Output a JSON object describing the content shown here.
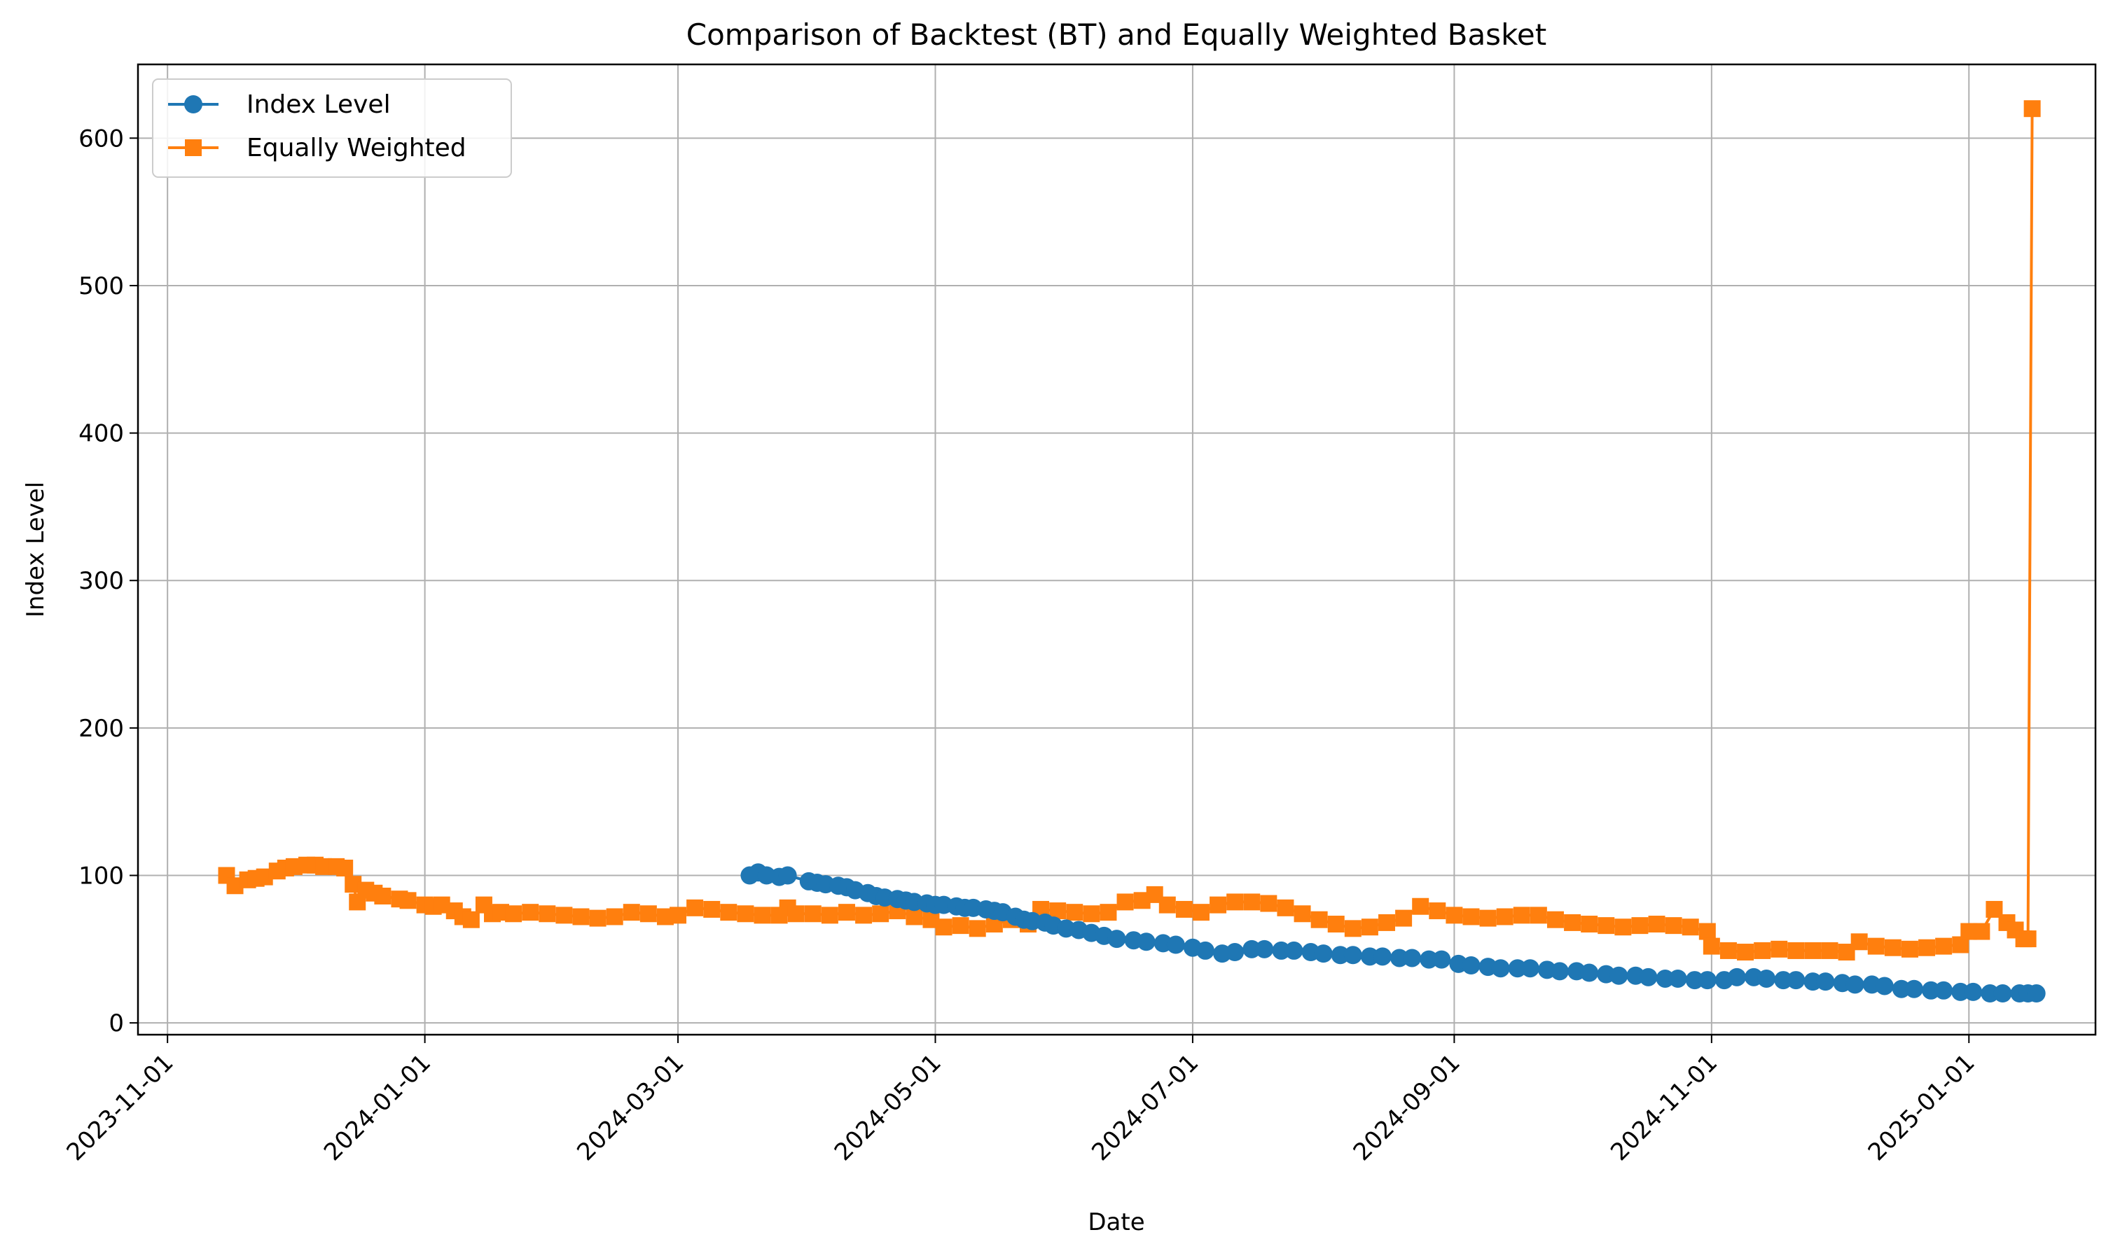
{
  "chart_data": {
    "type": "line",
    "title": "Comparison of Backtest (BT) and Equally Weighted Basket",
    "xlabel": "Date",
    "ylabel": "Index Level",
    "xlim": [
      "2023-10-25",
      "2025-01-31"
    ],
    "ylim": [
      -8,
      650
    ],
    "x_ticks": [
      "2023-11-01",
      "2024-01-01",
      "2024-03-01",
      "2024-05-01",
      "2024-07-01",
      "2024-09-01",
      "2024-11-01",
      "2025-01-01"
    ],
    "y_ticks": [
      0,
      100,
      200,
      300,
      400,
      500,
      600
    ],
    "grid": true,
    "legend": "top-left",
    "series": [
      {
        "name": "Index Level",
        "color": "#1f77b4",
        "marker": "circle",
        "points": [
          [
            "2024-03-18",
            100
          ],
          [
            "2024-03-20",
            102
          ],
          [
            "2024-03-22",
            100
          ],
          [
            "2024-03-25",
            99
          ],
          [
            "2024-03-27",
            100
          ],
          [
            "2024-04-01",
            96
          ],
          [
            "2024-04-03",
            95
          ],
          [
            "2024-04-05",
            94
          ],
          [
            "2024-04-08",
            93
          ],
          [
            "2024-04-10",
            92
          ],
          [
            "2024-04-12",
            90
          ],
          [
            "2024-04-15",
            88
          ],
          [
            "2024-04-17",
            86
          ],
          [
            "2024-04-19",
            85
          ],
          [
            "2024-04-22",
            84
          ],
          [
            "2024-04-24",
            83
          ],
          [
            "2024-04-26",
            82
          ],
          [
            "2024-04-29",
            81
          ],
          [
            "2024-05-01",
            80
          ],
          [
            "2024-05-03",
            80
          ],
          [
            "2024-05-06",
            79
          ],
          [
            "2024-05-08",
            78
          ],
          [
            "2024-05-10",
            78
          ],
          [
            "2024-05-13",
            77
          ],
          [
            "2024-05-15",
            76
          ],
          [
            "2024-05-17",
            75
          ],
          [
            "2024-05-20",
            72
          ],
          [
            "2024-05-22",
            70
          ],
          [
            "2024-05-24",
            69
          ],
          [
            "2024-05-27",
            68
          ],
          [
            "2024-05-29",
            66
          ],
          [
            "2024-06-01",
            64
          ],
          [
            "2024-06-04",
            63
          ],
          [
            "2024-06-07",
            61
          ],
          [
            "2024-06-10",
            59
          ],
          [
            "2024-06-13",
            57
          ],
          [
            "2024-06-17",
            56
          ],
          [
            "2024-06-20",
            55
          ],
          [
            "2024-06-24",
            54
          ],
          [
            "2024-06-27",
            53
          ],
          [
            "2024-07-01",
            51
          ],
          [
            "2024-07-04",
            49
          ],
          [
            "2024-07-08",
            47
          ],
          [
            "2024-07-11",
            48
          ],
          [
            "2024-07-15",
            50
          ],
          [
            "2024-07-18",
            50
          ],
          [
            "2024-07-22",
            49
          ],
          [
            "2024-07-25",
            49
          ],
          [
            "2024-07-29",
            48
          ],
          [
            "2024-08-01",
            47
          ],
          [
            "2024-08-05",
            46
          ],
          [
            "2024-08-08",
            46
          ],
          [
            "2024-08-12",
            45
          ],
          [
            "2024-08-15",
            45
          ],
          [
            "2024-08-19",
            44
          ],
          [
            "2024-08-22",
            44
          ],
          [
            "2024-08-26",
            43
          ],
          [
            "2024-08-29",
            43
          ],
          [
            "2024-09-02",
            40
          ],
          [
            "2024-09-05",
            39
          ],
          [
            "2024-09-09",
            38
          ],
          [
            "2024-09-12",
            37
          ],
          [
            "2024-09-16",
            37
          ],
          [
            "2024-09-19",
            37
          ],
          [
            "2024-09-23",
            36
          ],
          [
            "2024-09-26",
            35
          ],
          [
            "2024-09-30",
            35
          ],
          [
            "2024-10-03",
            34
          ],
          [
            "2024-10-07",
            33
          ],
          [
            "2024-10-10",
            32
          ],
          [
            "2024-10-14",
            32
          ],
          [
            "2024-10-17",
            31
          ],
          [
            "2024-10-21",
            30
          ],
          [
            "2024-10-24",
            30
          ],
          [
            "2024-10-28",
            29
          ],
          [
            "2024-10-31",
            29
          ],
          [
            "2024-11-04",
            29
          ],
          [
            "2024-11-07",
            31
          ],
          [
            "2024-11-11",
            31
          ],
          [
            "2024-11-14",
            30
          ],
          [
            "2024-11-18",
            29
          ],
          [
            "2024-11-21",
            29
          ],
          [
            "2024-11-25",
            28
          ],
          [
            "2024-11-28",
            28
          ],
          [
            "2024-12-02",
            27
          ],
          [
            "2024-12-05",
            26
          ],
          [
            "2024-12-09",
            26
          ],
          [
            "2024-12-12",
            25
          ],
          [
            "2024-12-16",
            23
          ],
          [
            "2024-12-19",
            23
          ],
          [
            "2024-12-23",
            22
          ],
          [
            "2024-12-26",
            22
          ],
          [
            "2024-12-30",
            21
          ],
          [
            "2025-01-02",
            21
          ],
          [
            "2025-01-06",
            20
          ],
          [
            "2025-01-09",
            20
          ],
          [
            "2025-01-13",
            20
          ],
          [
            "2025-01-15",
            20
          ],
          [
            "2025-01-17",
            20
          ]
        ]
      },
      {
        "name": "Equally Weighted",
        "color": "#ff7f0e",
        "marker": "square",
        "points": [
          [
            "2023-11-15",
            100
          ],
          [
            "2023-11-17",
            93
          ],
          [
            "2023-11-20",
            97
          ],
          [
            "2023-11-22",
            98
          ],
          [
            "2023-11-24",
            99
          ],
          [
            "2023-11-27",
            103
          ],
          [
            "2023-11-29",
            105
          ],
          [
            "2023-12-01",
            106
          ],
          [
            "2023-12-04",
            107
          ],
          [
            "2023-12-06",
            107
          ],
          [
            "2023-12-08",
            106
          ],
          [
            "2023-12-11",
            106
          ],
          [
            "2023-12-13",
            105
          ],
          [
            "2023-12-15",
            94
          ],
          [
            "2023-12-16",
            82
          ],
          [
            "2023-12-18",
            90
          ],
          [
            "2023-12-20",
            88
          ],
          [
            "2023-12-22",
            86
          ],
          [
            "2023-12-26",
            84
          ],
          [
            "2023-12-28",
            83
          ],
          [
            "2024-01-01",
            80
          ],
          [
            "2024-01-03",
            79
          ],
          [
            "2024-01-05",
            80
          ],
          [
            "2024-01-08",
            76
          ],
          [
            "2024-01-10",
            72
          ],
          [
            "2024-01-12",
            70
          ],
          [
            "2024-01-15",
            80
          ],
          [
            "2024-01-17",
            74
          ],
          [
            "2024-01-19",
            75
          ],
          [
            "2024-01-22",
            74
          ],
          [
            "2024-01-26",
            75
          ],
          [
            "2024-01-30",
            74
          ],
          [
            "2024-02-03",
            73
          ],
          [
            "2024-02-07",
            72
          ],
          [
            "2024-02-11",
            71
          ],
          [
            "2024-02-15",
            72
          ],
          [
            "2024-02-19",
            75
          ],
          [
            "2024-02-23",
            74
          ],
          [
            "2024-02-27",
            72
          ],
          [
            "2024-03-01",
            73
          ],
          [
            "2024-03-05",
            78
          ],
          [
            "2024-03-09",
            77
          ],
          [
            "2024-03-13",
            75
          ],
          [
            "2024-03-17",
            74
          ],
          [
            "2024-03-21",
            73
          ],
          [
            "2024-03-25",
            73
          ],
          [
            "2024-03-27",
            78
          ],
          [
            "2024-03-29",
            74
          ],
          [
            "2024-04-02",
            74
          ],
          [
            "2024-04-06",
            73
          ],
          [
            "2024-04-10",
            75
          ],
          [
            "2024-04-14",
            73
          ],
          [
            "2024-04-18",
            74
          ],
          [
            "2024-04-22",
            76
          ],
          [
            "2024-04-26",
            72
          ],
          [
            "2024-04-30",
            70
          ],
          [
            "2024-05-03",
            65
          ],
          [
            "2024-05-07",
            66
          ],
          [
            "2024-05-11",
            64
          ],
          [
            "2024-05-15",
            67
          ],
          [
            "2024-05-19",
            70
          ],
          [
            "2024-05-23",
            67
          ],
          [
            "2024-05-26",
            77
          ],
          [
            "2024-05-30",
            76
          ],
          [
            "2024-06-03",
            75
          ],
          [
            "2024-06-07",
            74
          ],
          [
            "2024-06-11",
            75
          ],
          [
            "2024-06-15",
            82
          ],
          [
            "2024-06-19",
            83
          ],
          [
            "2024-06-22",
            87
          ],
          [
            "2024-06-25",
            80
          ],
          [
            "2024-06-29",
            77
          ],
          [
            "2024-07-03",
            75
          ],
          [
            "2024-07-07",
            80
          ],
          [
            "2024-07-11",
            82
          ],
          [
            "2024-07-15",
            82
          ],
          [
            "2024-07-19",
            81
          ],
          [
            "2024-07-23",
            78
          ],
          [
            "2024-07-27",
            74
          ],
          [
            "2024-07-31",
            70
          ],
          [
            "2024-08-04",
            67
          ],
          [
            "2024-08-08",
            64
          ],
          [
            "2024-08-12",
            65
          ],
          [
            "2024-08-16",
            68
          ],
          [
            "2024-08-20",
            71
          ],
          [
            "2024-08-24",
            79
          ],
          [
            "2024-08-28",
            76
          ],
          [
            "2024-09-01",
            73
          ],
          [
            "2024-09-05",
            72
          ],
          [
            "2024-09-09",
            71
          ],
          [
            "2024-09-13",
            72
          ],
          [
            "2024-09-17",
            73
          ],
          [
            "2024-09-21",
            73
          ],
          [
            "2024-09-25",
            70
          ],
          [
            "2024-09-29",
            68
          ],
          [
            "2024-10-03",
            67
          ],
          [
            "2024-10-07",
            66
          ],
          [
            "2024-10-11",
            65
          ],
          [
            "2024-10-15",
            66
          ],
          [
            "2024-10-19",
            67
          ],
          [
            "2024-10-23",
            66
          ],
          [
            "2024-10-27",
            65
          ],
          [
            "2024-10-31",
            62
          ],
          [
            "2024-11-01",
            52
          ],
          [
            "2024-11-05",
            49
          ],
          [
            "2024-11-09",
            48
          ],
          [
            "2024-11-13",
            49
          ],
          [
            "2024-11-17",
            50
          ],
          [
            "2024-11-21",
            49
          ],
          [
            "2024-11-25",
            49
          ],
          [
            "2024-11-29",
            49
          ],
          [
            "2024-12-03",
            48
          ],
          [
            "2024-12-06",
            55
          ],
          [
            "2024-12-10",
            52
          ],
          [
            "2024-12-14",
            51
          ],
          [
            "2024-12-18",
            50
          ],
          [
            "2024-12-22",
            51
          ],
          [
            "2024-12-26",
            52
          ],
          [
            "2024-12-30",
            53
          ],
          [
            "2025-01-01",
            62
          ],
          [
            "2025-01-04",
            62
          ],
          [
            "2025-01-07",
            77
          ],
          [
            "2025-01-10",
            68
          ],
          [
            "2025-01-12",
            63
          ],
          [
            "2025-01-14",
            57
          ],
          [
            "2025-01-15",
            57
          ],
          [
            "2025-01-16",
            620
          ]
        ]
      }
    ]
  }
}
